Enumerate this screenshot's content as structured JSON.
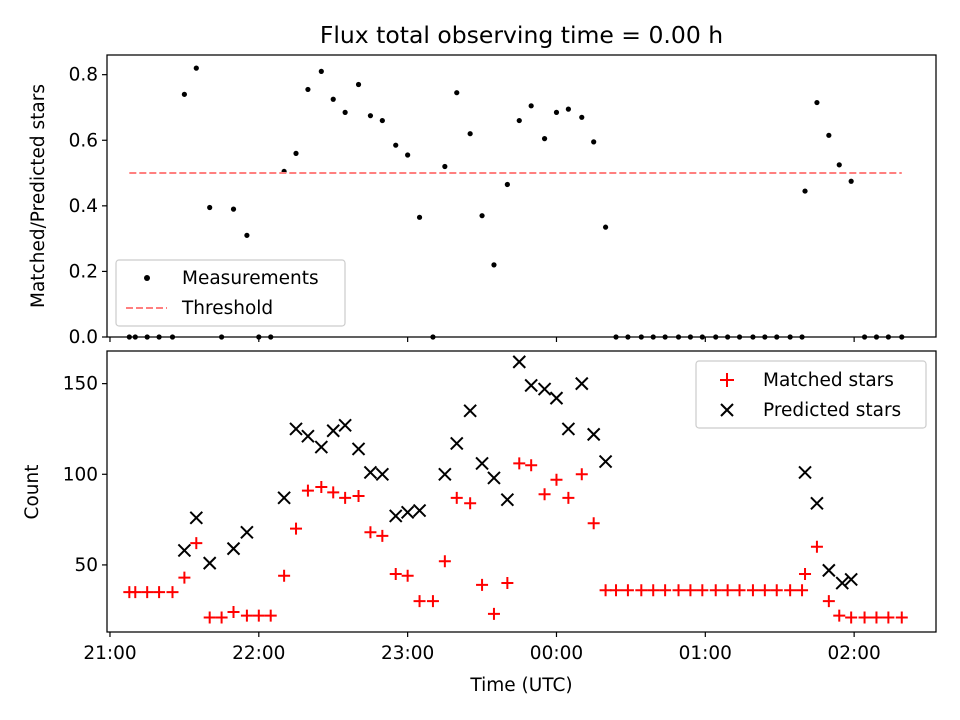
{
  "chart_data": [
    {
      "type": "scatter",
      "title": "Flux total observing time = 0.00 h",
      "xlabel": "",
      "ylabel": "Matched/Predicted stars",
      "xlim": [
        20.98,
        26.55
      ],
      "ylim": [
        0.0,
        0.86
      ],
      "yticks": [
        0.0,
        0.2,
        0.4,
        0.6,
        0.8
      ],
      "ytick_labels": [
        "0.0",
        "0.2",
        "0.4",
        "0.6",
        "0.8"
      ],
      "xticks": [
        21,
        22,
        23,
        24,
        25,
        26
      ],
      "legend": {
        "placement": "lower-left",
        "entries": [
          "Measurements",
          "Threshold"
        ]
      },
      "series": [
        {
          "name": "Measurements",
          "marker": "dot",
          "color": "#000000",
          "points": [
            [
              21.13,
              0.0
            ],
            [
              21.17,
              0.0
            ],
            [
              21.25,
              0.0
            ],
            [
              21.33,
              0.0
            ],
            [
              21.42,
              0.0
            ],
            [
              21.5,
              0.74
            ],
            [
              21.58,
              0.82
            ],
            [
              21.67,
              0.395
            ],
            [
              21.75,
              0.0
            ],
            [
              21.83,
              0.39
            ],
            [
              21.92,
              0.31
            ],
            [
              22.0,
              0.0
            ],
            [
              22.08,
              0.0
            ],
            [
              22.17,
              0.505
            ],
            [
              22.25,
              0.56
            ],
            [
              22.33,
              0.755
            ],
            [
              22.42,
              0.81
            ],
            [
              22.5,
              0.725
            ],
            [
              22.58,
              0.685
            ],
            [
              22.67,
              0.77
            ],
            [
              22.75,
              0.675
            ],
            [
              22.83,
              0.66
            ],
            [
              22.92,
              0.585
            ],
            [
              23.0,
              0.555
            ],
            [
              23.08,
              0.365
            ],
            [
              23.17,
              0.0
            ],
            [
              23.25,
              0.52
            ],
            [
              23.33,
              0.745
            ],
            [
              23.42,
              0.62
            ],
            [
              23.5,
              0.37
            ],
            [
              23.58,
              0.22
            ],
            [
              23.67,
              0.465
            ],
            [
              23.75,
              0.66
            ],
            [
              23.83,
              0.705
            ],
            [
              23.92,
              0.605
            ],
            [
              24.0,
              0.685
            ],
            [
              24.08,
              0.695
            ],
            [
              24.17,
              0.67
            ],
            [
              24.25,
              0.595
            ],
            [
              24.33,
              0.335
            ],
            [
              24.4,
              0.0
            ],
            [
              24.48,
              0.0
            ],
            [
              24.57,
              0.0
            ],
            [
              24.65,
              0.0
            ],
            [
              24.73,
              0.0
            ],
            [
              24.82,
              0.0
            ],
            [
              24.9,
              0.0
            ],
            [
              24.98,
              0.0
            ],
            [
              25.07,
              0.0
            ],
            [
              25.15,
              0.0
            ],
            [
              25.23,
              0.0
            ],
            [
              25.32,
              0.0
            ],
            [
              25.4,
              0.0
            ],
            [
              25.48,
              0.0
            ],
            [
              25.57,
              0.0
            ],
            [
              25.65,
              0.0
            ],
            [
              25.67,
              0.445
            ],
            [
              25.75,
              0.715
            ],
            [
              25.83,
              0.615
            ],
            [
              25.9,
              0.525
            ],
            [
              25.98,
              0.475
            ],
            [
              26.07,
              0.0
            ],
            [
              26.15,
              0.0
            ],
            [
              26.23,
              0.0
            ],
            [
              26.32,
              0.0
            ]
          ]
        },
        {
          "name": "Threshold",
          "line": "dashed",
          "color": "#ff7f7f",
          "x": [
            21.13,
            26.32
          ],
          "y": [
            0.5,
            0.5
          ]
        }
      ]
    },
    {
      "type": "scatter",
      "title": "",
      "xlabel": "Time (UTC)",
      "ylabel": "Count",
      "xlim": [
        20.98,
        26.55
      ],
      "ylim": [
        13,
        168
      ],
      "yticks": [
        50,
        100,
        150
      ],
      "ytick_labels": [
        "50",
        "100",
        "150"
      ],
      "xticks": [
        21,
        22,
        23,
        24,
        25,
        26
      ],
      "xtick_labels": [
        "21:00",
        "22:00",
        "23:00",
        "00:00",
        "01:00",
        "02:00"
      ],
      "legend": {
        "placement": "top-right",
        "entries": [
          "Matched stars",
          "Predicted stars"
        ]
      },
      "series": [
        {
          "name": "Matched stars",
          "marker": "plus",
          "color": "#ff0000",
          "points": [
            [
              21.13,
              35
            ],
            [
              21.17,
              35
            ],
            [
              21.25,
              35
            ],
            [
              21.33,
              35
            ],
            [
              21.42,
              35
            ],
            [
              21.5,
              43
            ],
            [
              21.58,
              62
            ],
            [
              21.67,
              21
            ],
            [
              21.75,
              21
            ],
            [
              21.83,
              24
            ],
            [
              21.92,
              22
            ],
            [
              22.0,
              22
            ],
            [
              22.08,
              22
            ],
            [
              22.17,
              44
            ],
            [
              22.25,
              70
            ],
            [
              22.33,
              91
            ],
            [
              22.42,
              93
            ],
            [
              22.5,
              90
            ],
            [
              22.58,
              87
            ],
            [
              22.67,
              88
            ],
            [
              22.75,
              68
            ],
            [
              22.83,
              66
            ],
            [
              22.92,
              45
            ],
            [
              23.0,
              44
            ],
            [
              23.08,
              30
            ],
            [
              23.17,
              30
            ],
            [
              23.25,
              52
            ],
            [
              23.33,
              87
            ],
            [
              23.42,
              84
            ],
            [
              23.5,
              39
            ],
            [
              23.58,
              23
            ],
            [
              23.67,
              40
            ],
            [
              23.75,
              106
            ],
            [
              23.83,
              105
            ],
            [
              23.92,
              89
            ],
            [
              24.0,
              97
            ],
            [
              24.08,
              87
            ],
            [
              24.17,
              100
            ],
            [
              24.25,
              73
            ],
            [
              24.33,
              36
            ],
            [
              24.4,
              36
            ],
            [
              24.48,
              36
            ],
            [
              24.57,
              36
            ],
            [
              24.65,
              36
            ],
            [
              24.73,
              36
            ],
            [
              24.82,
              36
            ],
            [
              24.9,
              36
            ],
            [
              24.98,
              36
            ],
            [
              25.07,
              36
            ],
            [
              25.15,
              36
            ],
            [
              25.23,
              36
            ],
            [
              25.32,
              36
            ],
            [
              25.4,
              36
            ],
            [
              25.48,
              36
            ],
            [
              25.57,
              36
            ],
            [
              25.65,
              36
            ],
            [
              25.67,
              45
            ],
            [
              25.75,
              60
            ],
            [
              25.83,
              30
            ],
            [
              25.9,
              22
            ],
            [
              25.98,
              21
            ],
            [
              26.07,
              21
            ],
            [
              26.15,
              21
            ],
            [
              26.23,
              21
            ],
            [
              26.32,
              21
            ]
          ]
        },
        {
          "name": "Predicted stars",
          "marker": "x",
          "color": "#000000",
          "points": [
            [
              21.5,
              58
            ],
            [
              21.58,
              76
            ],
            [
              21.67,
              51
            ],
            [
              21.83,
              59
            ],
            [
              21.92,
              68
            ],
            [
              22.17,
              87
            ],
            [
              22.25,
              125
            ],
            [
              22.33,
              121
            ],
            [
              22.42,
              115
            ],
            [
              22.5,
              124
            ],
            [
              22.58,
              127
            ],
            [
              22.67,
              114
            ],
            [
              22.75,
              101
            ],
            [
              22.83,
              100
            ],
            [
              22.92,
              77
            ],
            [
              23.0,
              79
            ],
            [
              23.08,
              80
            ],
            [
              23.25,
              100
            ],
            [
              23.33,
              117
            ],
            [
              23.42,
              135
            ],
            [
              23.5,
              106
            ],
            [
              23.58,
              98
            ],
            [
              23.67,
              86
            ],
            [
              23.75,
              162
            ],
            [
              23.83,
              149
            ],
            [
              23.92,
              147
            ],
            [
              24.0,
              142
            ],
            [
              24.08,
              125
            ],
            [
              24.17,
              150
            ],
            [
              24.25,
              122
            ],
            [
              24.33,
              107
            ],
            [
              25.67,
              101
            ],
            [
              25.75,
              84
            ],
            [
              25.83,
              47
            ],
            [
              25.92,
              40
            ],
            [
              25.98,
              42
            ]
          ]
        }
      ]
    }
  ]
}
